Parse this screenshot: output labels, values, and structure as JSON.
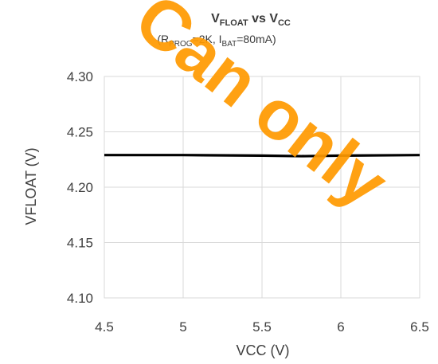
{
  "chart_data": {
    "type": "line",
    "title": {
      "main": "V",
      "main_sub": "FLOAT",
      "vs": " vs V",
      "vs_sub": "CC"
    },
    "subtitle": {
      "p1": "(R",
      "s1": "PROG",
      "p2": "=2K, I",
      "s2": "BAT",
      "p3": "=80mA)"
    },
    "xlabel": "VCC (V)",
    "ylabel": "VFLOAT  (V)",
    "xlim": [
      4.5,
      6.5
    ],
    "ylim": [
      4.1,
      4.3
    ],
    "xticks": [
      "4.5",
      "5",
      "5.5",
      "6",
      "6.5"
    ],
    "yticks": [
      "4.30",
      "4.25",
      "4.20",
      "4.15",
      "4.10"
    ],
    "grid": true,
    "series": [
      {
        "color": "#000000",
        "x": [
          4.5,
          5.0,
          5.5,
          5.75,
          6.0,
          6.5
        ],
        "y": [
          4.229,
          4.229,
          4.2285,
          4.228,
          4.2285,
          4.229
        ]
      }
    ]
  },
  "watermark": {
    "text": "Can only",
    "color": "#ff9a00"
  }
}
